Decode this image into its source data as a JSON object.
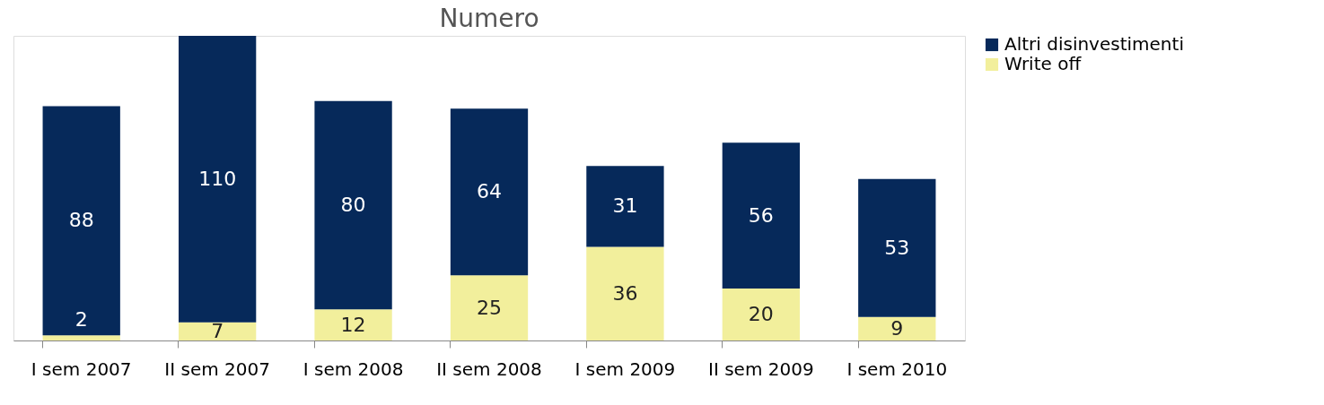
{
  "chart_data": {
    "type": "bar",
    "title": "Numero",
    "stacked": true,
    "data_labels": true,
    "legend": "right",
    "grid": false,
    "categories": [
      "I sem 2007",
      "II sem 2007",
      "I sem 2008",
      "II sem 2008",
      "I sem 2009",
      "II sem 2009",
      "I sem 2010"
    ],
    "series": [
      {
        "name": "Write off",
        "color": "#f2ef9c",
        "values": [
          2,
          7,
          12,
          25,
          36,
          20,
          9
        ]
      },
      {
        "name": "Altri disinvestimenti",
        "color": "#06295a",
        "values": [
          88,
          110,
          80,
          64,
          31,
          56,
          53
        ]
      }
    ]
  }
}
